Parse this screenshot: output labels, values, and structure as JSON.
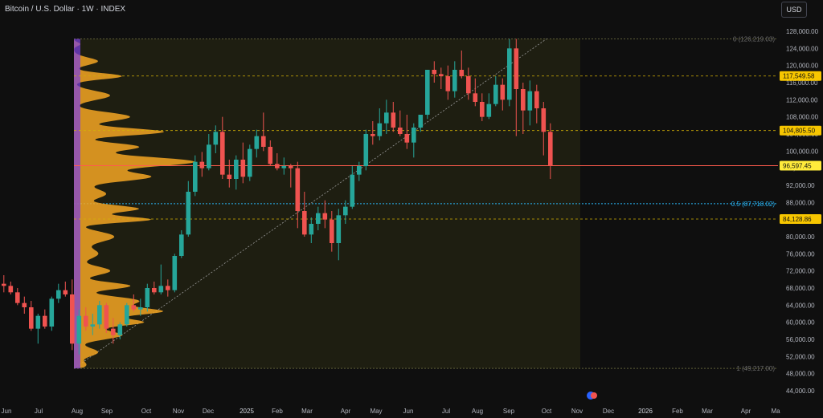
{
  "header": {
    "title": "Bitcoin / U.S. Dollar · 1W · INDEX",
    "currency": "USD"
  },
  "colors": {
    "up": "#26a69a",
    "down": "#ef5350",
    "profile": "#f5a623",
    "profile_band": "#7b3fe4",
    "level": "#d4b106",
    "fib_mid": "#29b6f6",
    "price": "#ff5b4d"
  },
  "chart_data": {
    "type": "candlestick",
    "ylim": [
      44000,
      130000
    ],
    "y_ticks": [
      "128,000.00",
      "124,000.00",
      "120,000.00",
      "116,000.00",
      "112,000.00",
      "108,000.00",
      "104,000.00",
      "100,000.00",
      "96,000.00",
      "92,000.00",
      "88,000.00",
      "84,000.00",
      "80,000.00",
      "76,000.00",
      "72,000.00",
      "68,000.00",
      "64,000.00",
      "60,000.00",
      "56,000.00",
      "52,000.00",
      "48,000.00",
      "44,000.00"
    ],
    "x_labels": [
      "Jun",
      "Jul",
      "Aug",
      "Sep",
      "Oct",
      "Nov",
      "Dec",
      "2025",
      "Feb",
      "Mar",
      "Apr",
      "May",
      "Jun",
      "Jul",
      "Aug",
      "Sep",
      "Oct",
      "Nov",
      "Dec",
      "2026",
      "Feb",
      "Mar",
      "Apr",
      "Ma"
    ],
    "price_tags": [
      {
        "value": 117549.58,
        "label": "117,549.58",
        "kind": "level"
      },
      {
        "value": 104805.5,
        "label": "104,805.50",
        "kind": "level"
      },
      {
        "value": 96597.45,
        "label": "96,597.45",
        "kind": "price"
      },
      {
        "value": 84128.86,
        "label": "84,128.86",
        "kind": "level"
      }
    ],
    "fib_labels": [
      {
        "value": 126219.03,
        "label": "0 (126,219.03)"
      },
      {
        "value": 87718.02,
        "label": "0.5 (87,718.02)"
      },
      {
        "value": 49217.0,
        "label": "1 (49,217.00)"
      }
    ],
    "candles": [
      [
        69000,
        71000,
        67000,
        68500
      ],
      [
        68500,
        69500,
        66500,
        67000
      ],
      [
        67000,
        68000,
        64000,
        64500
      ],
      [
        64500,
        66000,
        62000,
        63500
      ],
      [
        63500,
        65000,
        58000,
        58500
      ],
      [
        58500,
        62000,
        55000,
        61500
      ],
      [
        61500,
        63000,
        58500,
        59000
      ],
      [
        59000,
        66000,
        58000,
        65500
      ],
      [
        65500,
        69000,
        64500,
        67500
      ],
      [
        67500,
        69500,
        66000,
        66500
      ],
      [
        66500,
        70000,
        53500,
        55000
      ],
      [
        55000,
        63000,
        52500,
        61500
      ],
      [
        61500,
        63500,
        58000,
        59000
      ],
      [
        59000,
        62000,
        57000,
        59500
      ],
      [
        59500,
        65000,
        58500,
        64000
      ],
      [
        64000,
        64500,
        57500,
        58500
      ],
      [
        58500,
        61000,
        55000,
        57000
      ],
      [
        57000,
        60000,
        56000,
        59500
      ],
      [
        59500,
        64500,
        59000,
        64000
      ],
      [
        64000,
        66500,
        62500,
        63000
      ],
      [
        63000,
        65500,
        61500,
        63500
      ],
      [
        63500,
        69000,
        62500,
        68000
      ],
      [
        68000,
        69500,
        66500,
        67000
      ],
      [
        67000,
        73500,
        66500,
        68500
      ],
      [
        68500,
        70000,
        66000,
        67500
      ],
      [
        67500,
        76000,
        67000,
        75500
      ],
      [
        75500,
        81500,
        75000,
        80500
      ],
      [
        80500,
        93000,
        80000,
        90500
      ],
      [
        90500,
        99000,
        89500,
        97500
      ],
      [
        97500,
        99800,
        94000,
        96000
      ],
      [
        96000,
        104000,
        95500,
        101500
      ],
      [
        101500,
        106000,
        99500,
        104500
      ],
      [
        104500,
        108000,
        93500,
        94500
      ],
      [
        94500,
        98000,
        91500,
        93500
      ],
      [
        93500,
        99000,
        91000,
        98000
      ],
      [
        98000,
        102000,
        92500,
        94000
      ],
      [
        94000,
        101500,
        93000,
        100500
      ],
      [
        100500,
        105000,
        98500,
        103500
      ],
      [
        103500,
        109000,
        100000,
        101000
      ],
      [
        101000,
        102500,
        96500,
        97000
      ],
      [
        97000,
        99500,
        95500,
        96000
      ],
      [
        96000,
        98500,
        94500,
        96500
      ],
      [
        96500,
        97000,
        91500,
        96000
      ],
      [
        96000,
        97500,
        82000,
        86000
      ],
      [
        86000,
        90500,
        80000,
        80500
      ],
      [
        80500,
        84500,
        78500,
        83000
      ],
      [
        83000,
        87000,
        81500,
        85500
      ],
      [
        85500,
        88500,
        82000,
        84000
      ],
      [
        84000,
        86000,
        76500,
        78500
      ],
      [
        78500,
        86500,
        74500,
        85000
      ],
      [
        85000,
        88500,
        83000,
        87000
      ],
      [
        87000,
        96500,
        86500,
        94500
      ],
      [
        94500,
        97500,
        93000,
        96500
      ],
      [
        96500,
        105000,
        95500,
        104000
      ],
      [
        104000,
        107000,
        101500,
        103500
      ],
      [
        103500,
        110000,
        102500,
        106500
      ],
      [
        106500,
        112000,
        104000,
        109000
      ],
      [
        109000,
        111500,
        104500,
        105500
      ],
      [
        105500,
        109500,
        103500,
        104000
      ],
      [
        104000,
        108500,
        100500,
        102000
      ],
      [
        102000,
        106500,
        98500,
        105500
      ],
      [
        105500,
        108500,
        104500,
        108500
      ],
      [
        108500,
        119000,
        107500,
        119000
      ],
      [
        119000,
        121000,
        116000,
        118000
      ],
      [
        118000,
        119500,
        114500,
        117500
      ],
      [
        117500,
        120000,
        112000,
        114000
      ],
      [
        114000,
        121000,
        112500,
        119000
      ],
      [
        119000,
        123500,
        117000,
        117500
      ],
      [
        117500,
        119500,
        112000,
        113500
      ],
      [
        113500,
        117000,
        110500,
        111500
      ],
      [
        111500,
        113500,
        107000,
        108000
      ],
      [
        108000,
        113500,
        107500,
        111000
      ],
      [
        111000,
        117500,
        110500,
        115500
      ],
      [
        115500,
        117000,
        109500,
        112000
      ],
      [
        112000,
        126200,
        110500,
        124000
      ],
      [
        124000,
        126219,
        103500,
        114500
      ],
      [
        114500,
        116000,
        104000,
        109500
      ],
      [
        109500,
        116500,
        106000,
        114000
      ],
      [
        114000,
        115500,
        106500,
        110000
      ],
      [
        110000,
        111500,
        99000,
        104500
      ],
      [
        104500,
        106500,
        93500,
        96597
      ]
    ]
  }
}
